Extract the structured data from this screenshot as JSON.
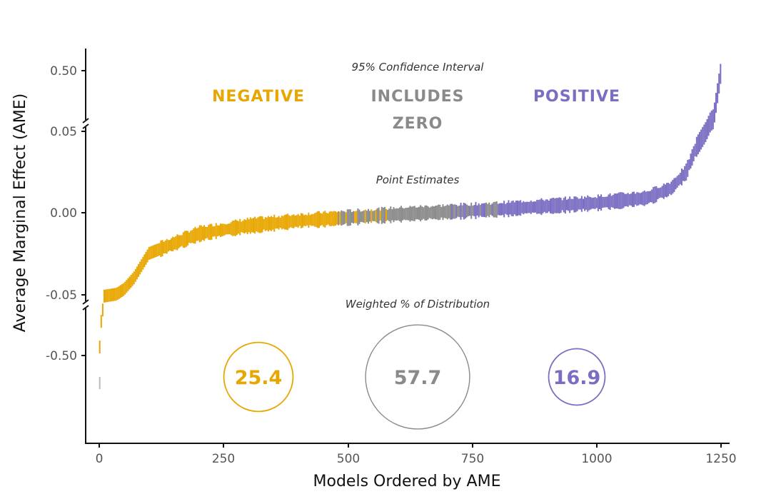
{
  "chart_data": {
    "type": "scatter",
    "title": "",
    "xlabel": "Models Ordered by AME",
    "ylabel": "Average Marginal Effect (AME)",
    "xlim": [
      0,
      1250
    ],
    "x_ticks": [
      "0",
      "250",
      "500",
      "750",
      "1000",
      "1250"
    ],
    "y_ticks": [
      "0.50",
      "0.05",
      "0.00",
      "-0.05",
      "-0.50"
    ],
    "y_scale": "broken axis (breaks between 0.05 and 0.50, and between -0.05 and -0.50)",
    "grid": false,
    "annotations": {
      "ci_header": "95% Confidence Interval",
      "negative": "NEGATIVE",
      "includes_zero_1": "INCLUDES",
      "includes_zero_2": "ZERO",
      "positive": "POSITIVE",
      "point_estimates": "Point Estimates",
      "weighted_header": "Weighted % of Distribution"
    },
    "categories": [
      {
        "name": "NEGATIVE",
        "color": "#E8A600",
        "weighted_pct": "25.4"
      },
      {
        "name": "INCLUDES ZERO",
        "color": "#8A8A8A",
        "weighted_pct": "57.7"
      },
      {
        "name": "POSITIVE",
        "color": "#7A6EC2",
        "weighted_pct": "16.9"
      }
    ],
    "curve_approx": [
      [
        0,
        -0.5
      ],
      [
        5,
        -0.12
      ],
      [
        10,
        -0.055
      ],
      [
        50,
        -0.047
      ],
      [
        70,
        -0.04
      ],
      [
        100,
        -0.025
      ],
      [
        200,
        -0.013
      ],
      [
        300,
        -0.008
      ],
      [
        400,
        -0.005
      ],
      [
        500,
        -0.003
      ],
      [
        600,
        -0.001
      ],
      [
        700,
        0.0005
      ],
      [
        800,
        0.002
      ],
      [
        900,
        0.004
      ],
      [
        1000,
        0.006
      ],
      [
        1100,
        0.009
      ],
      [
        1150,
        0.015
      ],
      [
        1180,
        0.025
      ],
      [
        1200,
        0.04
      ],
      [
        1220,
        0.05
      ],
      [
        1235,
        0.1
      ],
      [
        1250,
        0.5
      ]
    ],
    "ci_class_ranges": [
      {
        "from": 0,
        "to": 480,
        "class": "NEGATIVE"
      },
      {
        "from": 480,
        "to": 800,
        "class": "INCLUDES ZERO"
      },
      {
        "from": 800,
        "to": 1250,
        "class": "POSITIVE"
      }
    ]
  }
}
